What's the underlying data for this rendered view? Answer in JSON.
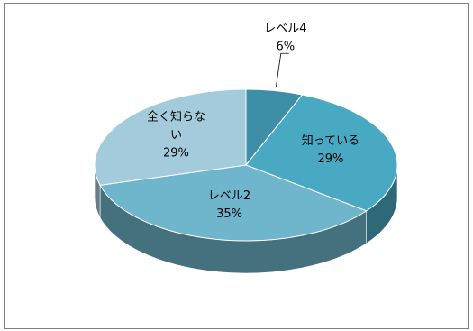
{
  "chart_data": {
    "type": "pie",
    "title": "",
    "style": "3d",
    "legend": "none",
    "slices": [
      {
        "label_lines": [
          "レベル4"
        ],
        "value": 6,
        "value_label": "6%",
        "color": "#3f8ea7"
      },
      {
        "label_lines": [
          "知っている"
        ],
        "value": 29,
        "value_label": "29%",
        "color": "#4aa9c2"
      },
      {
        "label_lines": [
          "レベル2"
        ],
        "value": 35,
        "value_label": "35%",
        "color": "#6fb5cb"
      },
      {
        "label_lines": [
          "全く知らな",
          "い"
        ],
        "value": 29,
        "value_label": "29%",
        "color": "#a4cbdc"
      }
    ]
  }
}
